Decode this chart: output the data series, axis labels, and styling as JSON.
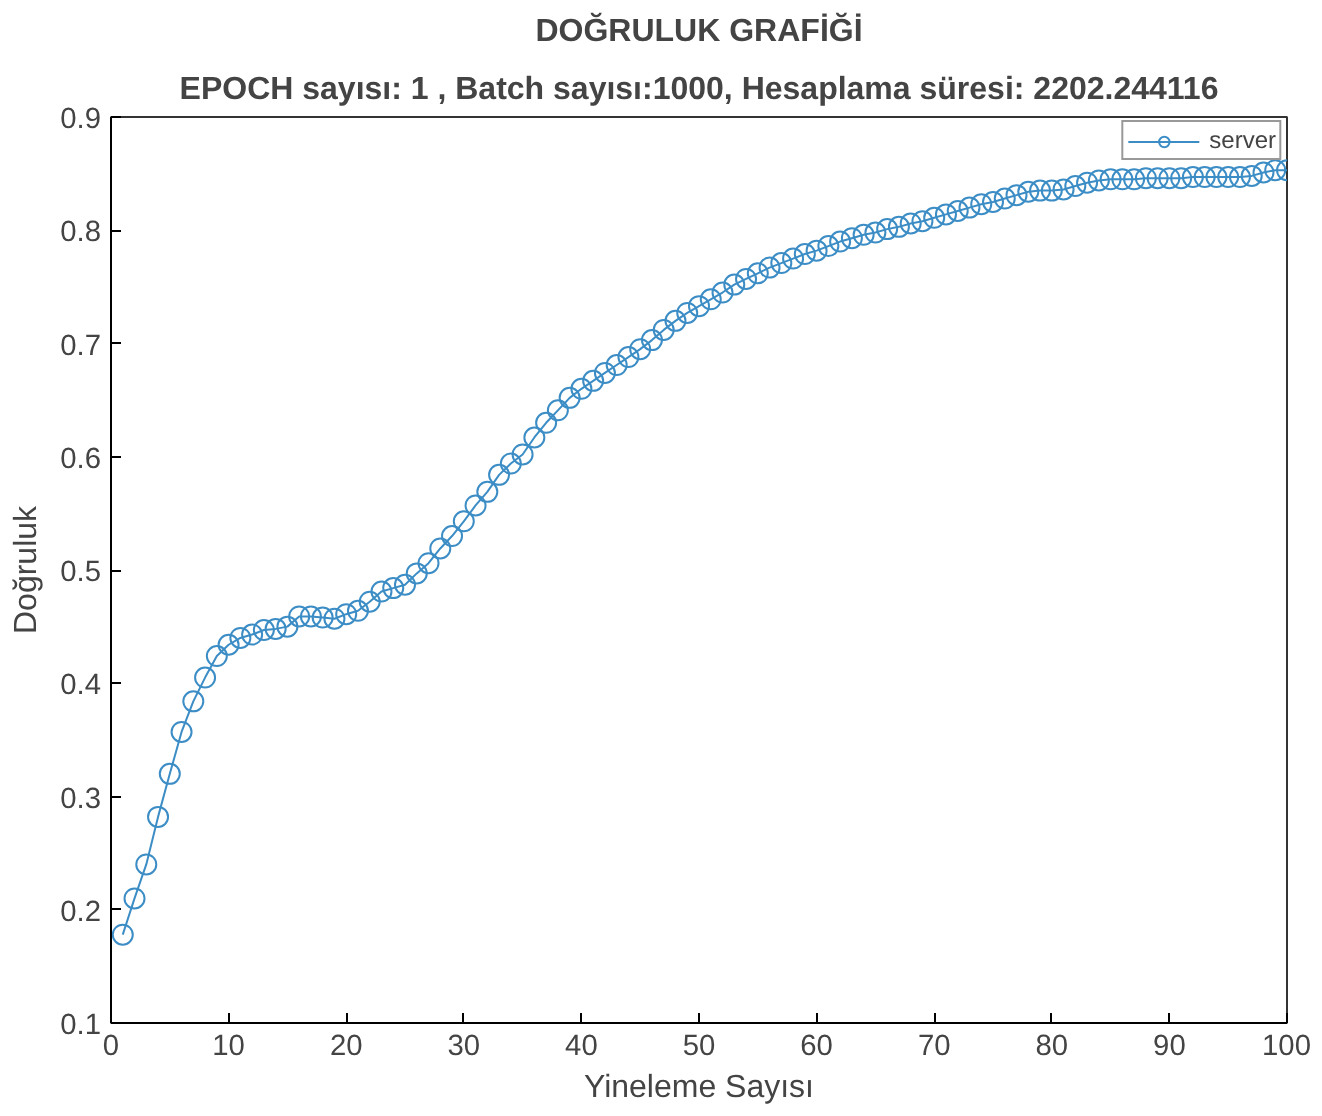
{
  "chart_data": {
    "type": "line",
    "title": "DOĞRULUK GRAFİĞİ",
    "subtitle": "EPOCH sayısı: 1 , Batch sayısı:1000, Hesaplama süresi: 2202.244116",
    "xlabel": "Yineleme Sayısı",
    "ylabel": "Doğruluk",
    "x": [
      1,
      2,
      3,
      4,
      5,
      6,
      7,
      8,
      9,
      10,
      11,
      12,
      13,
      14,
      15,
      16,
      17,
      18,
      19,
      20,
      21,
      22,
      23,
      24,
      25,
      26,
      27,
      28,
      29,
      30,
      31,
      32,
      33,
      34,
      35,
      36,
      37,
      38,
      39,
      40,
      41,
      42,
      43,
      44,
      45,
      46,
      47,
      48,
      49,
      50,
      51,
      52,
      53,
      54,
      55,
      56,
      57,
      58,
      59,
      60,
      61,
      62,
      63,
      64,
      65,
      66,
      67,
      68,
      69,
      70,
      71,
      72,
      73,
      74,
      75,
      76,
      77,
      78,
      79,
      80,
      81,
      82,
      83,
      84,
      85,
      86,
      87,
      88,
      89,
      90,
      91,
      92,
      93,
      94,
      95,
      96,
      97,
      98,
      99,
      100
    ],
    "series": [
      {
        "name": "server",
        "color": "#3c8dc5",
        "values": [
          0.178,
          0.21,
          0.24,
          0.282,
          0.32,
          0.357,
          0.384,
          0.405,
          0.424,
          0.434,
          0.44,
          0.443,
          0.447,
          0.448,
          0.45,
          0.459,
          0.459,
          0.458,
          0.457,
          0.461,
          0.464,
          0.472,
          0.481,
          0.484,
          0.487,
          0.497,
          0.506,
          0.519,
          0.53,
          0.543,
          0.557,
          0.569,
          0.584,
          0.594,
          0.602,
          0.617,
          0.63,
          0.641,
          0.652,
          0.66,
          0.667,
          0.674,
          0.681,
          0.688,
          0.695,
          0.703,
          0.712,
          0.72,
          0.727,
          0.733,
          0.739,
          0.745,
          0.752,
          0.757,
          0.762,
          0.767,
          0.771,
          0.775,
          0.779,
          0.782,
          0.786,
          0.79,
          0.793,
          0.796,
          0.798,
          0.801,
          0.803,
          0.806,
          0.808,
          0.811,
          0.814,
          0.817,
          0.82,
          0.823,
          0.825,
          0.828,
          0.831,
          0.834,
          0.835,
          0.835,
          0.836,
          0.839,
          0.842,
          0.844,
          0.845,
          0.845,
          0.845,
          0.846,
          0.846,
          0.846,
          0.846,
          0.847,
          0.847,
          0.847,
          0.847,
          0.847,
          0.848,
          0.851,
          0.853,
          0.853
        ]
      }
    ],
    "xlim": [
      0,
      100
    ],
    "xticks": [
      0,
      10,
      20,
      30,
      40,
      50,
      60,
      70,
      80,
      90,
      100
    ],
    "ylim": [
      0.1,
      0.9
    ],
    "yticks": [
      0.1,
      0.2,
      0.3,
      0.4,
      0.5,
      0.6,
      0.7,
      0.8,
      0.9
    ],
    "grid": false,
    "legend": "top right",
    "marker": "circle",
    "line_style": "solid"
  }
}
